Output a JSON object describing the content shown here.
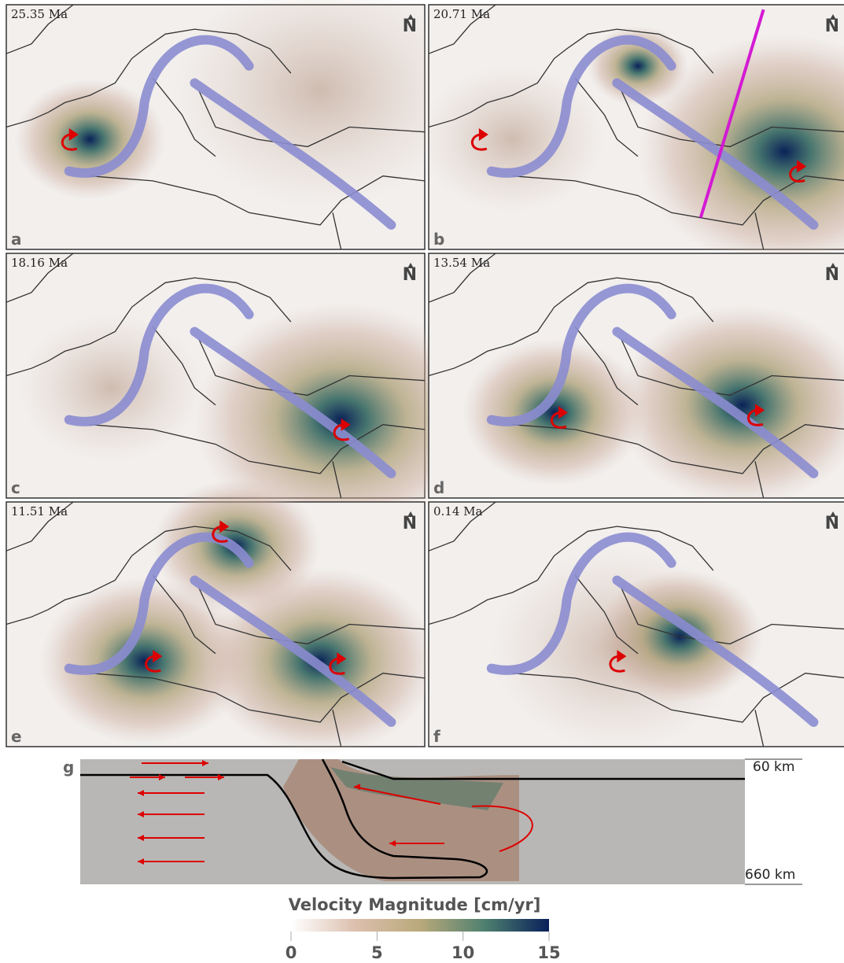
{
  "panels": [
    {
      "label": "a",
      "time": "25.35 Ma",
      "north": "N"
    },
    {
      "label": "b",
      "time": "20.71 Ma",
      "north": "N"
    },
    {
      "label": "c",
      "time": "18.16 Ma",
      "north": "N"
    },
    {
      "label": "d",
      "time": "13.54 Ma",
      "north": "N"
    },
    {
      "label": "e",
      "time": "11.51 Ma",
      "north": "N"
    },
    {
      "label": "f",
      "time": "0.14 Ma",
      "north": "N"
    }
  ],
  "section": {
    "label": "g",
    "top_depth": "60 km",
    "bottom_depth": "660 km"
  },
  "colorbar": {
    "title": "Velocity Magnitude [cm/yr]",
    "range": [
      0,
      15
    ],
    "ticks": [
      0,
      5,
      10,
      15
    ],
    "colors": [
      "#ffffff",
      "#dcbfae",
      "#b9a97a",
      "#4f806f",
      "#08205a"
    ]
  }
}
